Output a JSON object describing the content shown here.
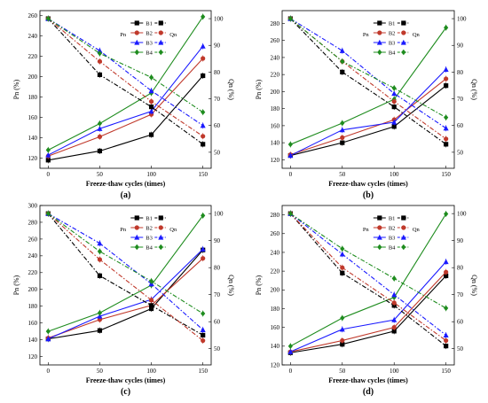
{
  "colors": {
    "B1": "#000000",
    "B2": "#c0392b",
    "B3": "#1a1aff",
    "B4": "#1e8c1e"
  },
  "legend": {
    "pn_label": "Pn",
    "qn_label": "Qn",
    "entries": [
      {
        "key": "B1",
        "marker": "square"
      },
      {
        "key": "B2",
        "marker": "circle"
      },
      {
        "key": "B3",
        "marker": "triangle"
      },
      {
        "key": "B4",
        "marker": "diamond"
      }
    ]
  },
  "chart_data": [
    {
      "type": "line",
      "panel_label": "(a)",
      "xlabel": "Freeze-thaw cycles (times)",
      "ylabel_left": "Pn (%)",
      "ylabel_right": "Qn (%)",
      "x": [
        0,
        50,
        100,
        150
      ],
      "ylim_left": [
        110,
        265
      ],
      "yticks_left": [
        120,
        140,
        160,
        180,
        200,
        220,
        240,
        260
      ],
      "ylim_right": [
        44,
        103
      ],
      "yticks_right": [
        50,
        60,
        70,
        80,
        90,
        100
      ],
      "series_pn": [
        {
          "name": "B1",
          "values": [
            118,
            127,
            143,
            201
          ]
        },
        {
          "name": "B2",
          "values": [
            122,
            141,
            163,
            218
          ]
        },
        {
          "name": "B3",
          "values": [
            123,
            149,
            166,
            230
          ]
        },
        {
          "name": "B4",
          "values": [
            128,
            154,
            184,
            259
          ]
        }
      ],
      "series_qn": [
        {
          "name": "B1",
          "values": [
            100,
            79,
            67,
            53
          ]
        },
        {
          "name": "B2",
          "values": [
            100,
            84,
            69,
            56
          ]
        },
        {
          "name": "B3",
          "values": [
            100,
            88,
            73,
            60
          ]
        },
        {
          "name": "B4",
          "values": [
            100,
            87,
            78,
            65
          ]
        }
      ]
    },
    {
      "type": "line",
      "panel_label": "(b)",
      "xlabel": "Freeze-thaw cycles (times)",
      "ylabel_left": "Pn (%)",
      "ylabel_right": "Qn (%)",
      "x": [
        0,
        50,
        100,
        150
      ],
      "ylim_left": [
        110,
        295
      ],
      "yticks_left": [
        120,
        140,
        160,
        180,
        200,
        220,
        240,
        260,
        280
      ],
      "ylim_right": [
        44,
        103
      ],
      "yticks_right": [
        50,
        60,
        70,
        80,
        90,
        100
      ],
      "series_pn": [
        {
          "name": "B1",
          "values": [
            125,
            140,
            159,
            207
          ]
        },
        {
          "name": "B2",
          "values": [
            126,
            146,
            167,
            215
          ]
        },
        {
          "name": "B3",
          "values": [
            125,
            155,
            164,
            226
          ]
        },
        {
          "name": "B4",
          "values": [
            138,
            163,
            191,
            275
          ]
        }
      ],
      "series_qn": [
        {
          "name": "B1",
          "values": [
            100,
            80,
            67,
            53
          ]
        },
        {
          "name": "B2",
          "values": [
            100,
            84,
            69,
            55
          ]
        },
        {
          "name": "B3",
          "values": [
            100,
            88,
            72,
            59
          ]
        },
        {
          "name": "B4",
          "values": [
            100,
            84,
            74,
            63
          ]
        }
      ]
    },
    {
      "type": "line",
      "panel_label": "(c)",
      "xlabel": "Freeze-thaw cycles (times)",
      "ylabel_left": "Pn (%)",
      "ylabel_right": "Qn (%)",
      "x": [
        0,
        50,
        100,
        150
      ],
      "ylim_left": [
        110,
        300
      ],
      "yticks_left": [
        120,
        140,
        160,
        180,
        200,
        220,
        240,
        260,
        280,
        300
      ],
      "ylim_right": [
        44,
        103
      ],
      "yticks_right": [
        50,
        60,
        70,
        80,
        90,
        100
      ],
      "series_pn": [
        {
          "name": "B1",
          "values": [
            141,
            151,
            177,
            247
          ]
        },
        {
          "name": "B2",
          "values": [
            142,
            164,
            181,
            237
          ]
        },
        {
          "name": "B3",
          "values": [
            141,
            168,
            188,
            248
          ]
        },
        {
          "name": "B4",
          "values": [
            150,
            172,
            205,
            288
          ]
        }
      ],
      "series_qn": [
        {
          "name": "B1",
          "values": [
            100,
            77,
            66,
            55
          ]
        },
        {
          "name": "B2",
          "values": [
            100,
            83,
            68,
            53
          ]
        },
        {
          "name": "B3",
          "values": [
            100,
            89,
            74,
            57
          ]
        },
        {
          "name": "B4",
          "values": [
            100,
            86,
            75,
            63
          ]
        }
      ]
    },
    {
      "type": "line",
      "panel_label": "(d)",
      "xlabel": "Freeze-thaw cycles (times)",
      "ylabel_left": "Pn (%)",
      "ylabel_right": "Qn (%)",
      "x": [
        0,
        50,
        100,
        150
      ],
      "ylim_left": [
        120,
        290
      ],
      "yticks_left": [
        120,
        140,
        160,
        180,
        200,
        220,
        240,
        260,
        280
      ],
      "ylim_right": [
        44,
        103
      ],
      "yticks_right": [
        50,
        60,
        70,
        80,
        90,
        100
      ],
      "series_pn": [
        {
          "name": "B1",
          "values": [
            133,
            142,
            156,
            215
          ]
        },
        {
          "name": "B2",
          "values": [
            134,
            146,
            160,
            219
          ]
        },
        {
          "name": "B3",
          "values": [
            134,
            158,
            168,
            230
          ]
        },
        {
          "name": "B4",
          "values": [
            140,
            170,
            192,
            281
          ]
        }
      ],
      "series_qn": [
        {
          "name": "B1",
          "values": [
            100,
            78,
            66,
            51
          ]
        },
        {
          "name": "B2",
          "values": [
            100,
            80,
            67,
            53
          ]
        },
        {
          "name": "B3",
          "values": [
            100,
            85,
            70,
            55
          ]
        },
        {
          "name": "B4",
          "values": [
            100,
            87,
            76,
            65
          ]
        }
      ]
    }
  ]
}
